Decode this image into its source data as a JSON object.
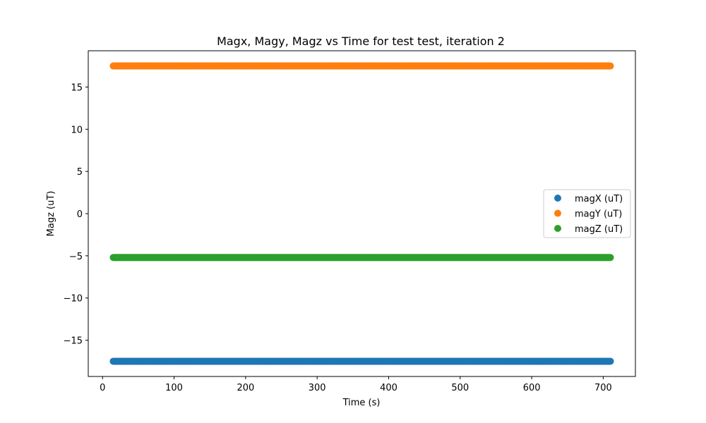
{
  "chart_data": {
    "type": "scatter",
    "title": "Magx, Magy, Magz vs Time for test test, iteration 2",
    "xlabel": "Time (s)",
    "ylabel": "Magz (uT)",
    "xlim": [
      -20,
      745
    ],
    "ylim": [
      -19.3,
      19.3
    ],
    "xticks": [
      0,
      100,
      200,
      300,
      400,
      500,
      600,
      700
    ],
    "yticks": [
      -15,
      -10,
      -5,
      0,
      5,
      10,
      15
    ],
    "x_range": [
      15,
      710
    ],
    "grid": false,
    "legend_position": "center-right",
    "series": [
      {
        "name": "magX (uT)",
        "color": "#1f77b4",
        "y": -17.5
      },
      {
        "name": "magY (uT)",
        "color": "#ff7f0e",
        "y": 17.5
      },
      {
        "name": "magZ (uT)",
        "color": "#2ca02c",
        "y": -5.2
      }
    ]
  }
}
